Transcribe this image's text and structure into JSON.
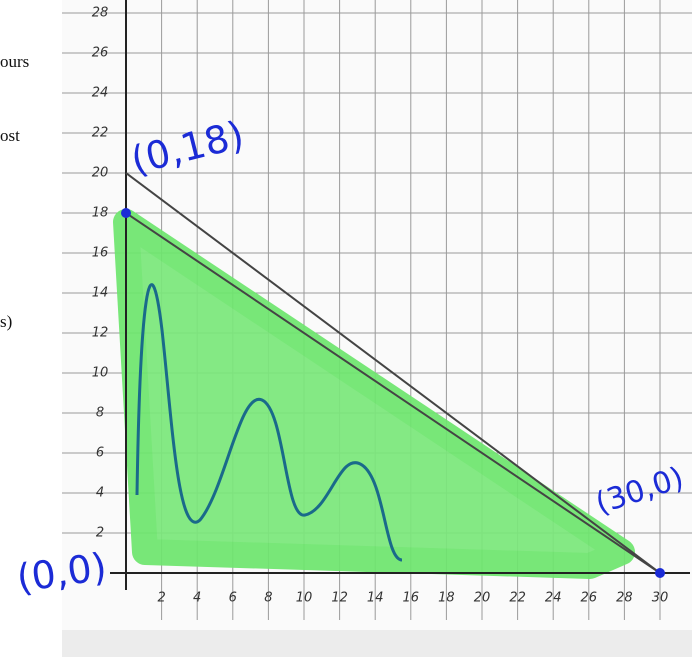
{
  "side_text": [
    "ours",
    "ost",
    "s)"
  ],
  "chart_data": {
    "type": "line",
    "x": [
      0,
      30
    ],
    "series": [
      {
        "color": "#444444",
        "values": [
          18,
          0
        ]
      },
      {
        "color": "#444444",
        "values": [
          20,
          0
        ]
      }
    ],
    "xlim": [
      0,
      31
    ],
    "ylim": [
      0,
      29
    ],
    "xticks": [
      2,
      4,
      6,
      8,
      10,
      12,
      14,
      16,
      18,
      20,
      22,
      24,
      26,
      28,
      30
    ],
    "yticks": [
      2,
      4,
      6,
      8,
      10,
      12,
      14,
      16,
      18,
      20,
      22,
      24,
      26,
      28
    ],
    "grid": true,
    "annotations": [
      "(0,18)",
      "(30,0)",
      "(0,0)"
    ]
  }
}
